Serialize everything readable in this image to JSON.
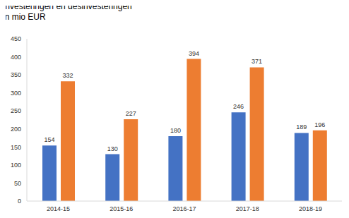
{
  "chart_data": {
    "type": "bar",
    "title": "Investeringen en desinvesteringen\nin mio EUR",
    "categories": [
      "2014-15",
      "2015-16",
      "2016-17",
      "2017-18",
      "2018-19"
    ],
    "series": [
      {
        "color": "#4472c4",
        "values": [
          154,
          130,
          180,
          246,
          189
        ]
      },
      {
        "color": "#ed7d31",
        "values": [
          332,
          227,
          394,
          371,
          196
        ]
      }
    ],
    "ylim": [
      0,
      450
    ],
    "yticks": [
      0,
      50,
      100,
      150,
      200,
      250,
      300,
      350,
      400,
      450
    ],
    "grid": false,
    "data_labels": true
  }
}
